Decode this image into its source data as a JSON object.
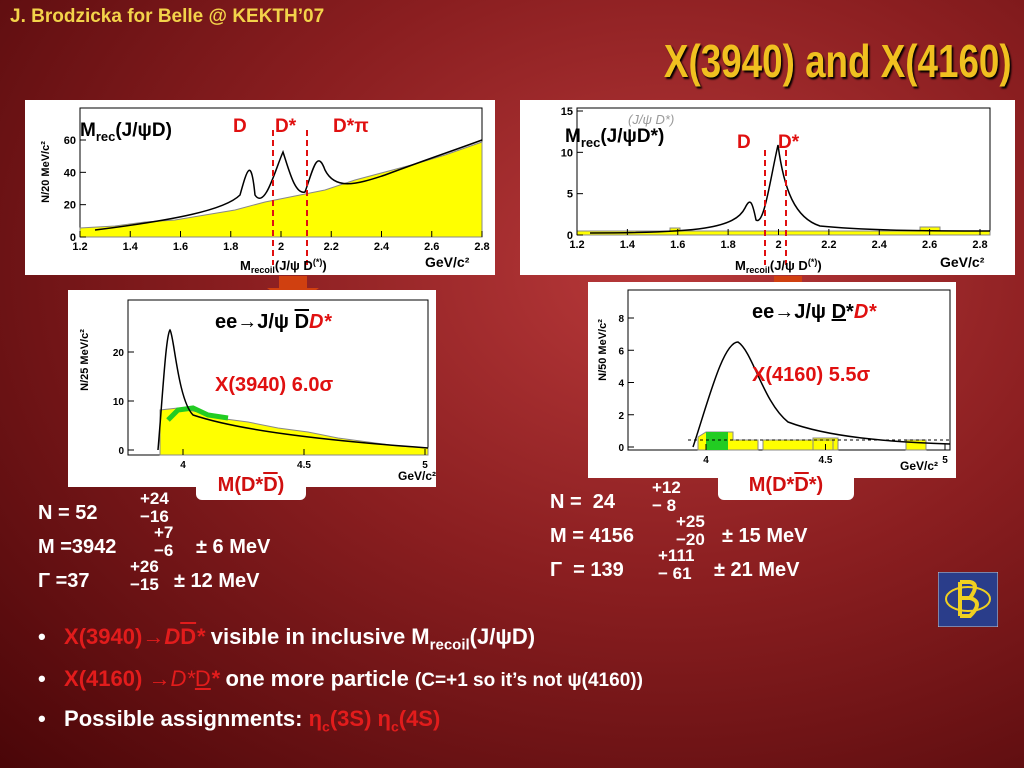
{
  "header": {
    "author": "J. Brodzicka for Belle @ KEKTH’07",
    "title": "X(3940) and X(4160)"
  },
  "plots": [
    {
      "label": [
        "M",
        "rec",
        "(J/ψD)"
      ],
      "peaks": [
        "D",
        "D*",
        "D*π"
      ],
      "ylabel": "N/20 MeV/c²",
      "yticks": [
        0,
        20,
        40,
        60
      ],
      "xticks": [
        1.2,
        1.4,
        1.6,
        1.8,
        2,
        2.2,
        2.4,
        2.6,
        2.8
      ],
      "xlabel": [
        "M",
        "recoil",
        "(J/ψ D",
        "(*)",
        ")"
      ],
      "unit": "GeV/c²"
    },
    {
      "label": [
        "M",
        "rec",
        "(J/ψD*)"
      ],
      "faint": "(J/ψ D*)",
      "peaks": [
        "D",
        "D*"
      ],
      "yticks": [
        0,
        5,
        10,
        15
      ],
      "xticks": [
        1.2,
        1.4,
        1.6,
        1.8,
        2,
        2.2,
        2.4,
        2.6,
        2.8
      ],
      "xlabel": [
        "M",
        "recoil",
        "(J/ψ D",
        "(*)",
        ")"
      ],
      "unit": "GeV/c²"
    },
    {
      "process": [
        "ee→J/ψ ",
        "D",
        "D*"
      ],
      "signif": "X(3940) 6.0σ",
      "ylabel": "N/25 MeV/c²",
      "yticks": [
        0,
        10,
        20
      ],
      "xticks": [
        4,
        4.5,
        5
      ],
      "unit": "GeV/c²",
      "mass": [
        "M(D*",
        "D",
        ")"
      ]
    },
    {
      "process": [
        "ee→J/ψ ",
        "D",
        "*",
        "D*"
      ],
      "signif": "X(4160) 5.5σ",
      "ylabel": "N/50 MeV/c²",
      "yticks": [
        0,
        2,
        4,
        6,
        8
      ],
      "xticks": [
        4,
        4.5,
        5
      ],
      "unit": "GeV/c²",
      "mass": [
        "M(D*",
        "D",
        "*)"
      ]
    }
  ],
  "results": {
    "left": [
      {
        "main": "N = 52",
        "up": "+24",
        "down": "−16",
        "err": ""
      },
      {
        "main": "M =3942",
        "up": "+7",
        "down": "−6",
        "err": "± 6 MeV"
      },
      {
        "main": "Γ =37",
        "up": "+26",
        "down": "−15",
        "err": "± 12 MeV"
      }
    ],
    "right": [
      {
        "main": "N =  24",
        "up": "+12",
        "down": "− 8",
        "err": ""
      },
      {
        "main": "M = 4156",
        "up": "+25",
        "down": "−20",
        "err": "± 15 MeV"
      },
      {
        "main": "Γ  = 139",
        "up": "+111",
        "down": "− 61",
        "err": "± 21 MeV"
      }
    ]
  },
  "bullets": [
    [
      "X(3940)",
      "→D",
      "D",
      "*",
      " visible in inclusive M",
      "recoil",
      "(J/ψD)"
    ],
    [
      "X(4160)",
      " →D*",
      "D",
      "*",
      " one more particle ",
      "(C=+1 so it’s not ψ(4160))"
    ],
    [
      "Possible assignments: ",
      "η",
      "c",
      "(3S) η",
      "c",
      "(4S)"
    ]
  ]
}
